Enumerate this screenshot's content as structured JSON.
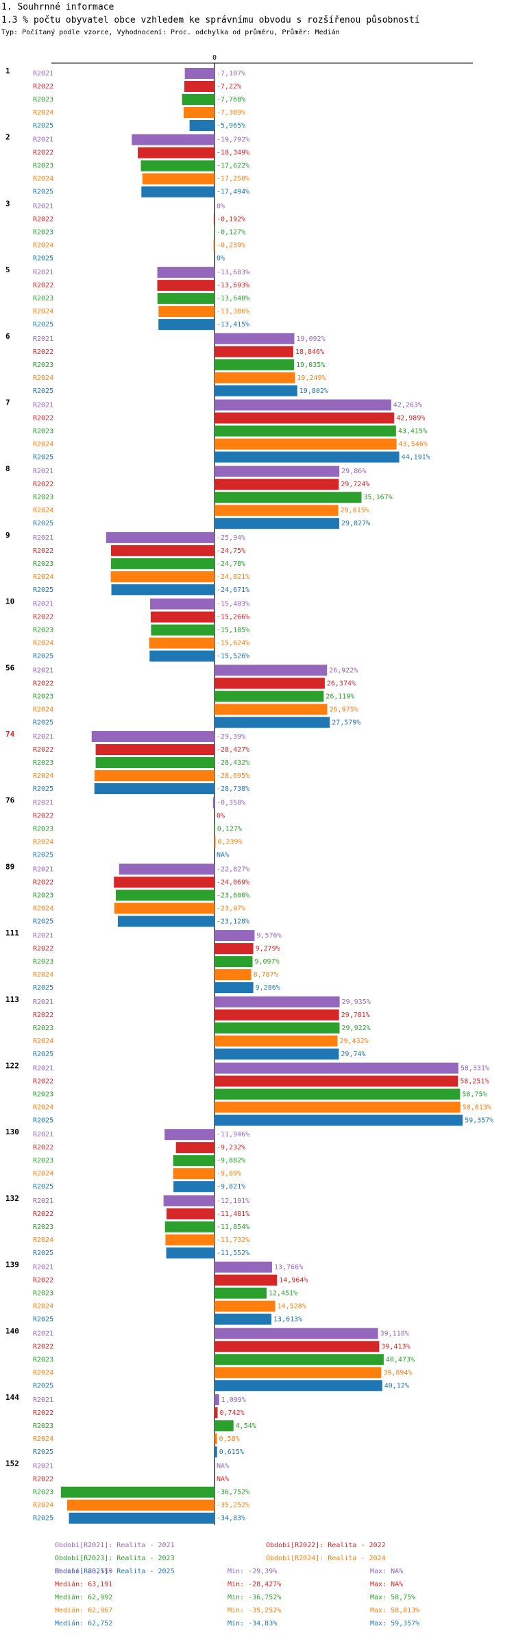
{
  "header": {
    "section": "1. Souhrnné informace",
    "title": "1.3 % počtu obyvatel obce vzhledem ke správnímu obvodu s rozšířenou působností",
    "subtitle": "Typ: Počítaný podle vzorce, Vyhodnocení: Proc. odchylka od průměru, Průměr: Medián"
  },
  "colors": {
    "R2021": "#9467bd",
    "R2022": "#d62728",
    "R2023": "#2ca02c",
    "R2024": "#ff7f0e",
    "R2025": "#1f77b4",
    "highlight": "#d62728"
  },
  "chart_data": {
    "type": "bar",
    "orientation": "horizontal",
    "zero_label": "0",
    "highlight_category": "74",
    "series_names": [
      "R2021",
      "R2022",
      "R2023",
      "R2024",
      "R2025"
    ],
    "groups": [
      {
        "id": "1",
        "values": [
          -7.107,
          -7.22,
          -7.768,
          -7.389,
          -5.965
        ],
        "labels": [
          "-7,107%",
          "-7,22%",
          "-7,768%",
          "-7,389%",
          "-5,965%"
        ]
      },
      {
        "id": "2",
        "values": [
          -19.792,
          -18.349,
          -17.622,
          -17.258,
          -17.494
        ],
        "labels": [
          "-19,792%",
          "-18,349%",
          "-17,622%",
          "-17,258%",
          "-17,494%"
        ]
      },
      {
        "id": "3",
        "values": [
          0,
          -0.192,
          -0.127,
          -0.239,
          0
        ],
        "labels": [
          "0%",
          "-0,192%",
          "-0,127%",
          "-0,239%",
          "0%"
        ]
      },
      {
        "id": "5",
        "values": [
          -13.683,
          -13.693,
          -13.648,
          -13.386,
          -13.415
        ],
        "labels": [
          "-13,683%",
          "-13,693%",
          "-13,648%",
          "-13,386%",
          "-13,415%"
        ]
      },
      {
        "id": "6",
        "values": [
          19.092,
          18.846,
          19.035,
          19.249,
          19.802
        ],
        "labels": [
          "19,092%",
          "18,846%",
          "19,035%",
          "19,249%",
          "19,802%"
        ]
      },
      {
        "id": "7",
        "values": [
          42.263,
          42.989,
          43.415,
          43.546,
          44.191
        ],
        "labels": [
          "42,263%",
          "42,989%",
          "43,415%",
          "43,546%",
          "44,191%"
        ]
      },
      {
        "id": "8",
        "values": [
          29.86,
          29.724,
          35.167,
          29.615,
          29.827
        ],
        "labels": [
          "29,86%",
          "29,724%",
          "35,167%",
          "29,615%",
          "29,827%"
        ]
      },
      {
        "id": "9",
        "values": [
          -25.94,
          -24.75,
          -24.78,
          -24.821,
          -24.671
        ],
        "labels": [
          "-25,94%",
          "-24,75%",
          "-24,78%",
          "-24,821%",
          "-24,671%"
        ]
      },
      {
        "id": "10",
        "values": [
          -15.403,
          -15.266,
          -15.185,
          -15.624,
          -15.526
        ],
        "labels": [
          "-15,403%",
          "-15,266%",
          "-15,185%",
          "-15,624%",
          "-15,526%"
        ]
      },
      {
        "id": "56",
        "values": [
          26.922,
          26.374,
          26.119,
          26.975,
          27.579
        ],
        "labels": [
          "26,922%",
          "26,374%",
          "26,119%",
          "26,975%",
          "27,579%"
        ]
      },
      {
        "id": "74",
        "values": [
          -29.39,
          -28.427,
          -28.432,
          -28.695,
          -28.738
        ],
        "labels": [
          "-29,39%",
          "-28,427%",
          "-28,432%",
          "-28,695%",
          "-28,738%"
        ]
      },
      {
        "id": "76",
        "values": [
          -0.358,
          0,
          0.127,
          0.239,
          null
        ],
        "labels": [
          "-0,358%",
          "0%",
          "0,127%",
          "0,239%",
          "NA%"
        ]
      },
      {
        "id": "89",
        "values": [
          -22.827,
          -24.069,
          -23.606,
          -23.97,
          -23.128
        ],
        "labels": [
          "-22,827%",
          "-24,069%",
          "-23,606%",
          "-23,97%",
          "-23,128%"
        ]
      },
      {
        "id": "111",
        "values": [
          9.576,
          9.279,
          9.097,
          8.787,
          9.286
        ],
        "labels": [
          "9,576%",
          "9,279%",
          "9,097%",
          "8,787%",
          "9,286%"
        ]
      },
      {
        "id": "113",
        "values": [
          29.935,
          29.781,
          29.922,
          29.432,
          29.74
        ],
        "labels": [
          "29,935%",
          "29,781%",
          "29,922%",
          "29,432%",
          "29,74%"
        ]
      },
      {
        "id": "122",
        "values": [
          58.331,
          58.251,
          58.75,
          58.813,
          59.357
        ],
        "labels": [
          "58,331%",
          "58,251%",
          "58,75%",
          "58,813%",
          "59,357%"
        ]
      },
      {
        "id": "130",
        "values": [
          -11.946,
          -9.232,
          -9.882,
          -9.89,
          -9.821
        ],
        "labels": [
          "-11,946%",
          "-9,232%",
          "-9,882%",
          "-9,89%",
          "-9,821%"
        ]
      },
      {
        "id": "132",
        "values": [
          -12.191,
          -11.481,
          -11.854,
          -11.732,
          -11.552
        ],
        "labels": [
          "-12,191%",
          "-11,481%",
          "-11,854%",
          "-11,732%",
          "-11,552%"
        ]
      },
      {
        "id": "139",
        "values": [
          13.766,
          14.964,
          12.451,
          14.528,
          13.613
        ],
        "labels": [
          "13,766%",
          "14,964%",
          "12,451%",
          "14,528%",
          "13,613%"
        ]
      },
      {
        "id": "140",
        "values": [
          39.118,
          39.413,
          40.473,
          39.894,
          40.12
        ],
        "labels": [
          "39,118%",
          "39,413%",
          "40,473%",
          "39,894%",
          "40,12%"
        ]
      },
      {
        "id": "144",
        "values": [
          1.099,
          0.742,
          4.54,
          0.58,
          0.615
        ],
        "labels": [
          "1,099%",
          "0,742%",
          "4,54%",
          "0,58%",
          "0,615%"
        ]
      },
      {
        "id": "152",
        "values": [
          null,
          null,
          -36.752,
          -35.252,
          -34.83
        ],
        "labels": [
          "NA%",
          "NA%",
          "-36,752%",
          "-35,252%",
          "-34,83%"
        ]
      }
    ],
    "xlim": [
      -37.5,
      61
    ],
    "legend": [
      {
        "key": "R2021",
        "label": "Období[R2021]: Realita - 2021"
      },
      {
        "key": "R2022",
        "label": "Období[R2022]: Realita - 2022"
      },
      {
        "key": "R2023",
        "label": "Období[R2023]: Realita - 2023"
      },
      {
        "key": "R2024",
        "label": "Období[R2024]: Realita - 2024"
      },
      {
        "key": "R2025",
        "label": "Období[R2025]: Realita - 2025"
      }
    ],
    "stats": [
      {
        "key": "R2021",
        "median": "Medián: 63,159",
        "min": "Min: -29,39%",
        "max": "Max: NA%"
      },
      {
        "key": "R2022",
        "median": "Medián: 63,191",
        "min": "Min: -28,427%",
        "max": "Max: NA%"
      },
      {
        "key": "R2023",
        "median": "Medián: 62,992",
        "min": "Min: -36,752%",
        "max": "Max: 58,75%"
      },
      {
        "key": "R2024",
        "median": "Medián: 62,967",
        "min": "Min: -35,252%",
        "max": "Max: 58,813%"
      },
      {
        "key": "R2025",
        "median": "Medián: 62,752",
        "min": "Min: -34,83%",
        "max": "Max: 59,357%"
      }
    ]
  }
}
